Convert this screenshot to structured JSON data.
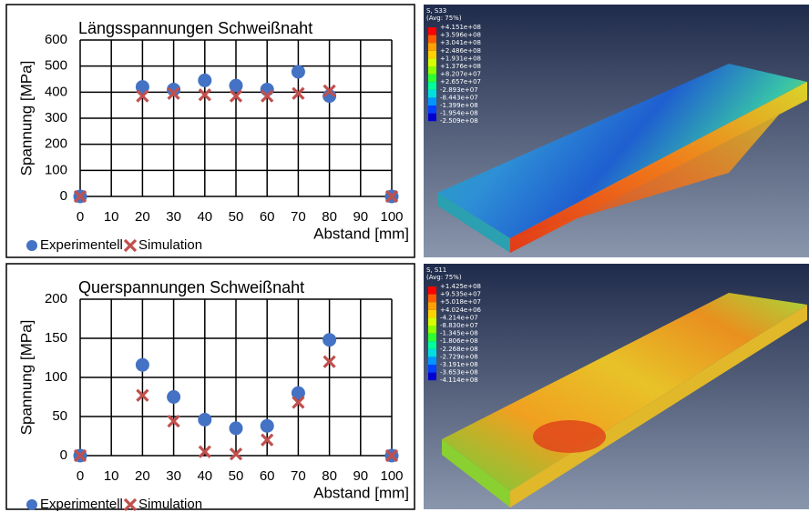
{
  "chart_data": [
    {
      "type": "scatter",
      "title": "Längsspannungen Schweißnaht",
      "x_label": "Abstand [mm]",
      "y_label": "Spannung [MPa]",
      "x": [
        0,
        20,
        30,
        40,
        50,
        60,
        70,
        80,
        100
      ],
      "series": [
        {
          "name": "Experimentell",
          "color": "#4472c4",
          "marker": "circle",
          "values": [
            0,
            420,
            410,
            445,
            425,
            410,
            478,
            385,
            0
          ]
        },
        {
          "name": "Simulation",
          "color": "#c0504d",
          "marker": "x",
          "values": [
            0,
            385,
            395,
            390,
            385,
            385,
            395,
            405,
            0
          ]
        }
      ],
      "xlim": [
        0,
        100
      ],
      "xticks": [
        0,
        10,
        20,
        30,
        40,
        50,
        60,
        70,
        80,
        90,
        100
      ],
      "ylim": [
        0,
        600
      ],
      "yticks": [
        0,
        100,
        200,
        300,
        400,
        500,
        600
      ],
      "grid": true
    },
    {
      "type": "scatter",
      "title": "Querspannungen Schweißnaht",
      "x_label": "Abstand [mm]",
      "y_label": "Spannung [MPa]",
      "x": [
        0,
        20,
        30,
        40,
        50,
        60,
        70,
        80,
        100
      ],
      "series": [
        {
          "name": "Experimentell",
          "color": "#4472c4",
          "marker": "circle",
          "values": [
            0,
            116,
            75,
            46,
            35,
            38,
            80,
            148,
            0
          ]
        },
        {
          "name": "Simulation",
          "color": "#c0504d",
          "marker": "x",
          "values": [
            0,
            77,
            44,
            5,
            2,
            20,
            68,
            120,
            0
          ]
        }
      ],
      "xlim": [
        0,
        100
      ],
      "xticks": [
        0,
        10,
        20,
        30,
        40,
        50,
        60,
        70,
        80,
        90,
        100
      ],
      "ylim": [
        0,
        200
      ],
      "yticks": [
        0,
        50,
        100,
        150,
        200
      ],
      "grid": true
    }
  ],
  "contour_plots": [
    {
      "variable": "S, S33",
      "averaging": "(Avg: 75%)",
      "legend": [
        "+4.151e+08",
        "+3.596e+08",
        "+3.041e+08",
        "+2.486e+08",
        "+1.931e+08",
        "+1.376e+08",
        "+8.207e+07",
        "+2.657e+07",
        "-2.893e+07",
        "-8.443e+07",
        "-1.399e+08",
        "-1.954e+08",
        "-2.509e+08"
      ]
    },
    {
      "variable": "S, S11",
      "averaging": "(Avg: 75%)",
      "legend": [
        "+1.425e+08",
        "+9.535e+07",
        "+5.018e+07",
        "+4.024e+06",
        "-4.214e+07",
        "-8.830e+07",
        "-1.345e+08",
        "-1.806e+08",
        "-2.268e+08",
        "-2.729e+08",
        "-3.191e+08",
        "-3.653e+08",
        "-4.114e+08"
      ]
    }
  ]
}
